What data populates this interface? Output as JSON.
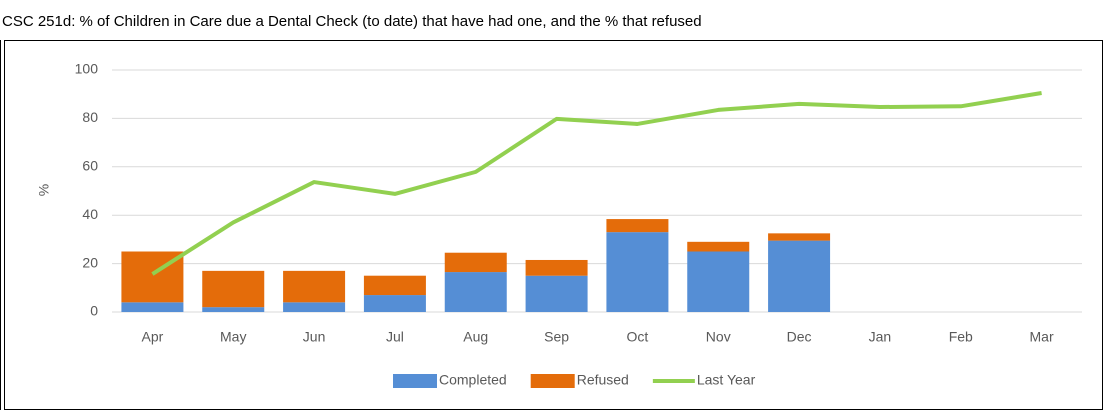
{
  "chart_data": {
    "type": "stacked_bar_line",
    "title": "CSC 251d: % of Children in Care due a Dental Check (to date) that have had one, and the % that refused",
    "ylabel": "%",
    "categories": [
      "Apr",
      "May",
      "Jun",
      "Jul",
      "Aug",
      "Sep",
      "Oct",
      "Nov",
      "Dec",
      "Jan",
      "Feb",
      "Mar"
    ],
    "series": [
      {
        "name": "Completed",
        "type": "bar",
        "color": "#558ed5",
        "values": [
          4,
          2,
          4,
          7,
          16.5,
          15,
          33,
          25,
          29.5,
          null,
          null,
          null
        ]
      },
      {
        "name": "Refused",
        "type": "bar",
        "color": "#e46c0a",
        "values": [
          21,
          15,
          13,
          8,
          8,
          6.5,
          5.4,
          4,
          3,
          null,
          null,
          null
        ]
      },
      {
        "name": "Last Year",
        "type": "line",
        "color": "#92d050",
        "values": [
          15.7,
          37,
          53.7,
          48.8,
          57.9,
          79.8,
          77.7,
          83.5,
          86,
          84.7,
          85,
          90.5
        ]
      }
    ],
    "ylim": [
      0,
      100
    ],
    "yticks": [
      0,
      20,
      40,
      60,
      80,
      100
    ],
    "grid": true,
    "legend": "bottom"
  }
}
